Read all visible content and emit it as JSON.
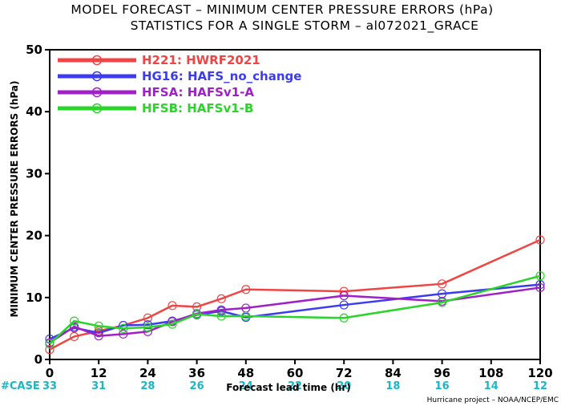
{
  "chart_data": {
    "type": "line",
    "title": "MODEL FORECAST – MINIMUM CENTER PRESSURE ERRORS (hPa)",
    "subtitle": "STATISTICS FOR A SINGLE STORM – al072021_GRACE",
    "xlabel": "Forecast lead time (hr)",
    "ylabel": "MINIMUM CENTER PRESSURE ERRORS (hPa)",
    "xlim": [
      0,
      120
    ],
    "ylim": [
      0,
      50
    ],
    "xticks": [
      0,
      12,
      24,
      36,
      48,
      60,
      72,
      84,
      96,
      108,
      120
    ],
    "yticks": [
      0,
      10,
      20,
      30,
      40,
      50
    ],
    "grid": false,
    "legend_position": "top-left",
    "case_label": "#CASE",
    "case_counts": [
      {
        "x": 0,
        "n": "33"
      },
      {
        "x": 12,
        "n": "31"
      },
      {
        "x": 24,
        "n": "28"
      },
      {
        "x": 36,
        "n": "26"
      },
      {
        "x": 48,
        "n": "24"
      },
      {
        "x": 60,
        "n": "22"
      },
      {
        "x": 72,
        "n": "20"
      },
      {
        "x": 84,
        "n": "18"
      },
      {
        "x": 96,
        "n": "16"
      },
      {
        "x": 108,
        "n": "14"
      },
      {
        "x": 120,
        "n": "12"
      }
    ],
    "credit": "Hurricane project – NOAA/NCEP/EMC",
    "series": [
      {
        "name": "H221: HWRF2021",
        "color": "#f04545",
        "x": [
          0,
          6,
          12,
          18,
          24,
          30,
          36,
          42,
          48,
          72,
          96,
          120
        ],
        "y": [
          1.6,
          3.7,
          4.6,
          5.5,
          6.7,
          8.7,
          8.5,
          9.8,
          11.3,
          11.0,
          12.2,
          19.3
        ]
      },
      {
        "name": "HG16: HAFS_no_change",
        "color": "#3b3bf0",
        "x": [
          0,
          6,
          12,
          18,
          24,
          30,
          36,
          42,
          48,
          72,
          96,
          120
        ],
        "y": [
          3.3,
          5.1,
          4.3,
          5.5,
          5.6,
          6.2,
          7.2,
          7.8,
          6.8,
          8.8,
          10.6,
          12.1
        ]
      },
      {
        "name": "HFSA: HAFSv1-A",
        "color": "#a020c8",
        "x": [
          0,
          6,
          12,
          18,
          24,
          30,
          36,
          42,
          48,
          72,
          96,
          120
        ],
        "y": [
          2.7,
          5.3,
          3.8,
          4.1,
          4.5,
          6.1,
          7.4,
          8.0,
          8.3,
          10.3,
          9.4,
          11.6
        ]
      },
      {
        "name": "HFSB: HAFSv1-B",
        "color": "#2ad42a",
        "x": [
          0,
          6,
          12,
          18,
          24,
          30,
          36,
          42,
          48,
          72,
          96,
          120
        ],
        "y": [
          2.5,
          6.2,
          5.4,
          5.0,
          5.2,
          5.7,
          7.3,
          7.0,
          7.0,
          6.7,
          9.2,
          13.5
        ]
      }
    ]
  }
}
